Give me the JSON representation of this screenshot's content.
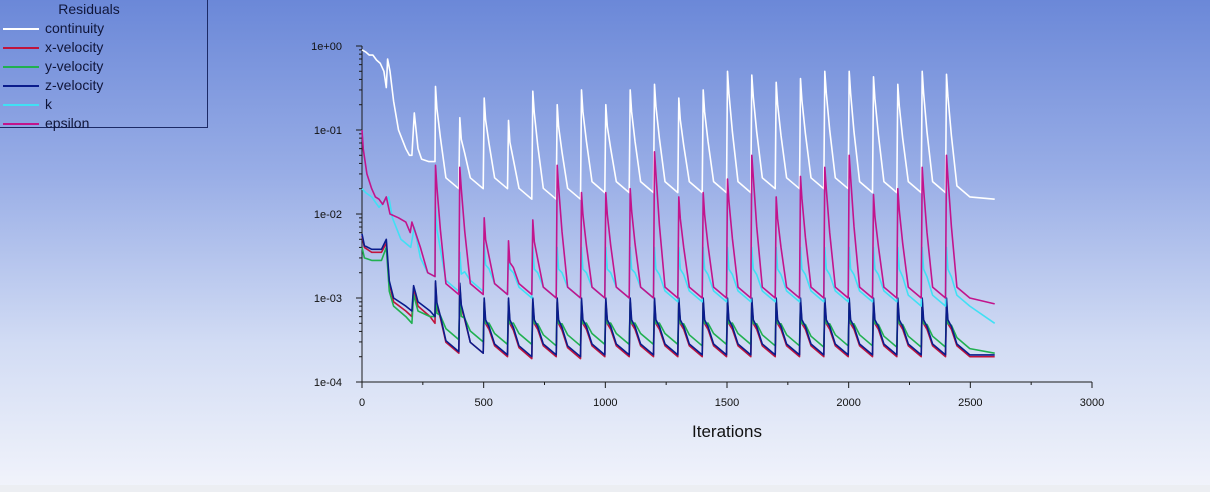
{
  "chart_data": {
    "type": "line",
    "y_scale": "log",
    "ylim": [
      0.0001,
      1
    ],
    "xlim": [
      0,
      3000
    ],
    "xlabel": "Iterations",
    "ylabel": "",
    "x_ticks": [
      "0",
      "500",
      "1000",
      "1500",
      "2000",
      "2500",
      "3000"
    ],
    "y_ticks": [
      "1e-04",
      "1e-03",
      "1e-02",
      "1e-01",
      "1e+00"
    ],
    "grid": false,
    "legend_title": "Residuals",
    "legend_position": "top-left",
    "peaks_x": [
      300,
      400,
      500,
      600,
      700,
      800,
      900,
      1000,
      1100,
      1200,
      1300,
      1400,
      1500,
      1600,
      1700,
      1800,
      1900,
      2000,
      2100,
      2200,
      2300,
      2400
    ],
    "series": [
      {
        "name": "continuity",
        "color": "#ffffff",
        "start": [
          [
            0,
            0.9
          ],
          [
            15,
            0.85
          ],
          [
            30,
            0.78
          ],
          [
            45,
            0.78
          ],
          [
            60,
            0.68
          ],
          [
            75,
            0.62
          ],
          [
            90,
            0.5
          ],
          [
            100,
            0.32
          ],
          [
            105,
            0.7
          ],
          [
            115,
            0.5
          ],
          [
            130,
            0.22
          ],
          [
            150,
            0.1
          ],
          [
            180,
            0.06
          ],
          [
            195,
            0.05
          ],
          [
            205,
            0.05
          ],
          [
            215,
            0.16
          ],
          [
            230,
            0.06
          ],
          [
            245,
            0.045
          ],
          [
            275,
            0.042
          ],
          [
            300,
            0.042
          ]
        ],
        "peaks": [
          0.33,
          0.14,
          0.24,
          0.13,
          0.29,
          0.2,
          0.3,
          0.2,
          0.3,
          0.35,
          0.24,
          0.3,
          0.5,
          0.45,
          0.37,
          0.41,
          0.5,
          0.5,
          0.43,
          0.35,
          0.5,
          0.46
        ],
        "troughs": [
          0.02,
          0.02,
          0.02,
          0.015,
          0.015,
          0.015,
          0.018,
          0.018,
          0.018,
          0.018,
          0.018,
          0.018,
          0.018,
          0.02,
          0.02,
          0.02,
          0.02,
          0.018,
          0.018,
          0.018,
          0.018,
          0.016
        ],
        "end": [
          [
            2600,
            0.015
          ]
        ]
      },
      {
        "name": "x-velocity",
        "color": "#c0143c",
        "start": [
          [
            0,
            0.0055
          ],
          [
            10,
            0.004
          ],
          [
            40,
            0.0035
          ],
          [
            80,
            0.0035
          ],
          [
            100,
            0.0045
          ],
          [
            112,
            0.0015
          ],
          [
            130,
            0.0009
          ],
          [
            180,
            0.0007
          ],
          [
            205,
            0.0006
          ],
          [
            212,
            0.0013
          ],
          [
            230,
            0.0008
          ],
          [
            280,
            0.0006
          ],
          [
            300,
            0.0005
          ]
        ],
        "peaks": [
          0.0015,
          0.0014,
          0.0009,
          0.0009,
          0.0009,
          0.0009,
          0.0009,
          0.0009,
          0.0009,
          0.0009,
          0.0009,
          0.0009,
          0.0009,
          0.0009,
          0.0009,
          0.0009,
          0.0009,
          0.0009,
          0.0009,
          0.0009,
          0.0009,
          0.0009
        ],
        "troughs": [
          0.00022,
          0.00022,
          0.0002,
          0.00019,
          0.0002,
          0.00019,
          0.0002,
          0.0002,
          0.0002,
          0.0002,
          0.0002,
          0.0002,
          0.0002,
          0.0002,
          0.0002,
          0.0002,
          0.0002,
          0.0002,
          0.0002,
          0.0002,
          0.0002,
          0.0002
        ],
        "end": [
          [
            2600,
            0.0002
          ]
        ]
      },
      {
        "name": "y-velocity",
        "color": "#20b050",
        "start": [
          [
            0,
            0.004
          ],
          [
            10,
            0.003
          ],
          [
            40,
            0.0028
          ],
          [
            80,
            0.0028
          ],
          [
            100,
            0.004
          ],
          [
            112,
            0.0012
          ],
          [
            130,
            0.0008
          ],
          [
            180,
            0.0006
          ],
          [
            205,
            0.0005
          ],
          [
            212,
            0.0011
          ],
          [
            230,
            0.0007
          ],
          [
            280,
            0.0006
          ],
          [
            300,
            0.0006
          ]
        ],
        "peaks": [
          0.0012,
          0.0011,
          0.0009,
          0.0009,
          0.0009,
          0.0009,
          0.0009,
          0.0009,
          0.0009,
          0.0009,
          0.0009,
          0.0009,
          0.0009,
          0.0009,
          0.0009,
          0.0009,
          0.0009,
          0.0009,
          0.0009,
          0.0009,
          0.0009,
          0.0009
        ],
        "troughs": [
          0.00032,
          0.0003,
          0.00028,
          0.00028,
          0.00027,
          0.00027,
          0.00028,
          0.00028,
          0.00028,
          0.00028,
          0.00027,
          0.00028,
          0.00028,
          0.00027,
          0.00027,
          0.00026,
          0.00027,
          0.00027,
          0.00026,
          0.00026,
          0.00026,
          0.00025
        ],
        "end": [
          [
            2600,
            0.00022
          ]
        ]
      },
      {
        "name": "z-velocity",
        "color": "#0a1c8c",
        "start": [
          [
            0,
            0.0058
          ],
          [
            10,
            0.0042
          ],
          [
            40,
            0.0038
          ],
          [
            80,
            0.0038
          ],
          [
            100,
            0.005
          ],
          [
            112,
            0.0016
          ],
          [
            130,
            0.001
          ],
          [
            180,
            0.0008
          ],
          [
            205,
            0.0007
          ],
          [
            212,
            0.0014
          ],
          [
            230,
            0.0009
          ],
          [
            280,
            0.0007
          ],
          [
            300,
            0.0006
          ]
        ],
        "peaks": [
          0.0016,
          0.0015,
          0.001,
          0.001,
          0.001,
          0.001,
          0.001,
          0.001,
          0.001,
          0.001,
          0.001,
          0.001,
          0.001,
          0.001,
          0.001,
          0.001,
          0.001,
          0.001,
          0.001,
          0.001,
          0.001,
          0.001
        ],
        "troughs": [
          0.00023,
          0.00022,
          0.00021,
          0.0002,
          0.00021,
          0.0002,
          0.00021,
          0.00021,
          0.00021,
          0.00021,
          0.00021,
          0.00021,
          0.00021,
          0.00021,
          0.00021,
          0.00021,
          0.00021,
          0.00021,
          0.00021,
          0.00021,
          0.00021,
          0.00021
        ],
        "end": [
          [
            2600,
            0.00021
          ]
        ]
      },
      {
        "name": "k",
        "color": "#40e0f4",
        "start": [
          [
            0,
            0.02
          ],
          [
            15,
            0.018
          ],
          [
            40,
            0.016
          ],
          [
            70,
            0.012
          ],
          [
            90,
            0.014
          ],
          [
            110,
            0.016
          ],
          [
            125,
            0.009
          ],
          [
            160,
            0.005
          ],
          [
            200,
            0.004
          ],
          [
            215,
            0.007
          ],
          [
            240,
            0.003
          ],
          [
            270,
            0.002
          ],
          [
            300,
            0.0018
          ]
        ],
        "peaks": [
          0.012,
          0.0035,
          0.0045,
          0.004,
          0.004,
          0.004,
          0.004,
          0.004,
          0.004,
          0.004,
          0.004,
          0.004,
          0.004,
          0.004,
          0.004,
          0.004,
          0.004,
          0.004,
          0.004,
          0.004,
          0.004,
          0.004
        ],
        "troughs": [
          0.0012,
          0.0012,
          0.0011,
          0.001,
          0.001,
          0.001,
          0.001,
          0.001,
          0.001,
          0.0009,
          0.0009,
          0.0009,
          0.0009,
          0.0009,
          0.0009,
          0.0009,
          0.0009,
          0.0009,
          0.0009,
          0.0008,
          0.0008,
          0.0008
        ],
        "end": [
          [
            2600,
            0.0005
          ]
        ]
      },
      {
        "name": "epsilon",
        "color": "#c2148c",
        "start": [
          [
            0,
            0.1
          ],
          [
            5,
            0.06
          ],
          [
            20,
            0.03
          ],
          [
            40,
            0.02
          ],
          [
            55,
            0.016
          ],
          [
            70,
            0.015
          ],
          [
            85,
            0.013
          ],
          [
            100,
            0.016
          ],
          [
            115,
            0.01
          ],
          [
            150,
            0.009
          ],
          [
            180,
            0.008
          ],
          [
            198,
            0.006
          ],
          [
            205,
            0.008
          ],
          [
            220,
            0.006
          ],
          [
            240,
            0.004
          ],
          [
            270,
            0.002
          ],
          [
            300,
            0.0018
          ]
        ],
        "peaks": [
          0.038,
          0.036,
          0.009,
          0.0048,
          0.0085,
          0.038,
          0.018,
          0.018,
          0.02,
          0.055,
          0.016,
          0.018,
          0.026,
          0.05,
          0.016,
          0.028,
          0.036,
          0.05,
          0.017,
          0.02,
          0.036,
          0.05
        ],
        "troughs": [
          0.0011,
          0.0011,
          0.0011,
          0.0011,
          0.001,
          0.001,
          0.001,
          0.001,
          0.001,
          0.001,
          0.001,
          0.001,
          0.001,
          0.001,
          0.001,
          0.001,
          0.001,
          0.001,
          0.001,
          0.001,
          0.001,
          0.001
        ],
        "end": [
          [
            2600,
            0.00085
          ]
        ]
      }
    ]
  }
}
